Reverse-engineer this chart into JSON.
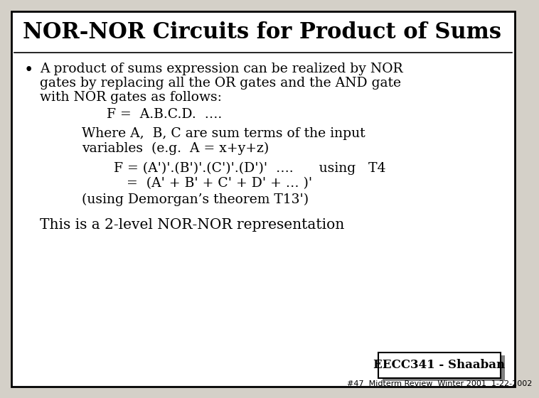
{
  "title": "NOR-NOR Circuits for Product of Sums",
  "background_color": "#d4d0c8",
  "border_color": "#000000",
  "title_color": "#000000",
  "body_color": "#000000",
  "bullet_text_line1": "A product of sums expression can be realized by NOR",
  "bullet_text_line2": "gates by replacing all the OR gates and the AND gate",
  "bullet_text_line3": "with NOR gates as follows:",
  "formula1": "F =  A.B.C.D.  ….",
  "where_line1": "Where A,  B, C are sum terms of the input",
  "where_line2": "variables  (e.g.  A = x+y+z)",
  "formula2a": "F = (A')'.(B')'.(C')'.(D')'  ….      using   T4",
  "formula2b": "   =  (A' + B' + C' + D' + … )'",
  "demorgan": "(using Demorgan’s theorem T13')",
  "conclusion": "This is a 2-level NOR-NOR representation",
  "footer_main": "EECC341 - Shaaban",
  "footer_sub": "#47  Midterm Review  Winter 2001  1-22-2002",
  "title_fontsize": 22,
  "body_fontsize": 13.5,
  "formula_fontsize": 13.5,
  "footer_fontsize": 12,
  "footer_sub_fontsize": 8
}
